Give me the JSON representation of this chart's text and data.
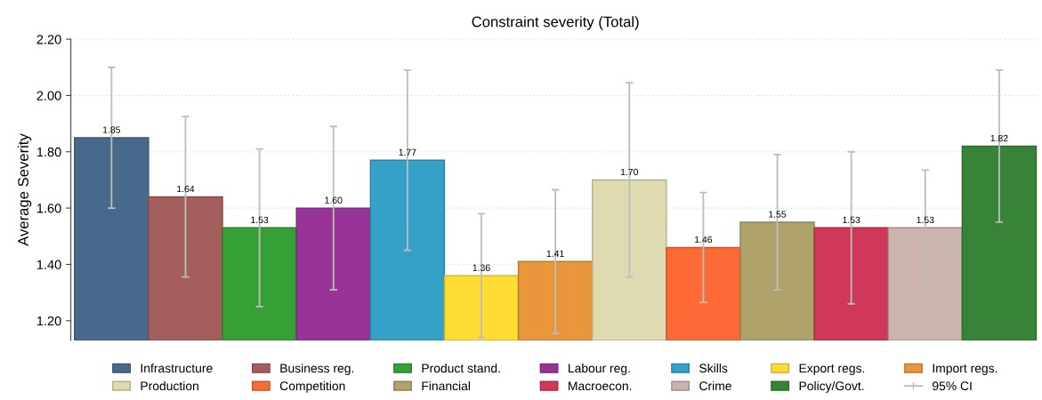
{
  "chart_data": {
    "type": "bar",
    "title": "Constraint severity (Total)",
    "ylabel": "Average Severity",
    "categories": [
      null
    ],
    "series": [
      {
        "name": "Infrastructure",
        "color": "#48698c",
        "values": [
          1.85
        ],
        "errors": [
          0.25
        ],
        "value_labels": [
          "1.85"
        ]
      },
      {
        "name": "Business reg.",
        "color": "#a55e5e",
        "values": [
          1.64
        ],
        "errors": [
          0.285
        ],
        "value_labels": [
          "1.64"
        ]
      },
      {
        "name": "Product stand.",
        "color": "#36a036",
        "values": [
          1.53
        ],
        "errors": [
          0.28
        ],
        "value_labels": [
          "1.53"
        ]
      },
      {
        "name": "Labour reg.",
        "color": "#983498",
        "values": [
          1.6
        ],
        "errors": [
          0.29
        ],
        "value_labels": [
          "1.60"
        ]
      },
      {
        "name": "Skills",
        "color": "#35a1c9",
        "values": [
          1.77
        ],
        "errors": [
          0.32
        ],
        "value_labels": [
          "1.77"
        ]
      },
      {
        "name": "Export regs.",
        "color": "#fedc34",
        "values": [
          1.36
        ],
        "errors": [
          0.22
        ],
        "value_labels": [
          "1.36"
        ]
      },
      {
        "name": "Import regs.",
        "color": "#e9973a",
        "values": [
          1.41
        ],
        "errors": [
          0.255
        ],
        "value_labels": [
          "1.41"
        ]
      },
      {
        "name": "Production",
        "color": "#dedbb0",
        "values": [
          1.7
        ],
        "errors": [
          0.345
        ],
        "value_labels": [
          "1.70"
        ]
      },
      {
        "name": "Competition",
        "color": "#fe6a35",
        "values": [
          1.46
        ],
        "errors": [
          0.195
        ],
        "value_labels": [
          "1.46"
        ]
      },
      {
        "name": "Financial",
        "color": "#b0a26b",
        "values": [
          1.55
        ],
        "errors": [
          0.24
        ],
        "value_labels": [
          "1.55"
        ]
      },
      {
        "name": "Macroecon.",
        "color": "#cf3858",
        "values": [
          1.53
        ],
        "errors": [
          0.27
        ],
        "value_labels": [
          "1.53"
        ]
      },
      {
        "name": "Crime",
        "color": "#cbb3ae",
        "values": [
          1.53
        ],
        "errors": [
          0.205
        ],
        "value_labels": [
          "1.53"
        ]
      },
      {
        "name": "Policy/Govt.",
        "color": "#378337",
        "values": [
          1.82
        ],
        "errors": [
          0.27
        ],
        "value_labels": [
          "1.82"
        ]
      }
    ],
    "ylim": [
      1.13,
      2.2
    ],
    "yticks": [
      {
        "value": 1.2,
        "label": "1.20"
      },
      {
        "value": 1.4,
        "label": "1.40"
      },
      {
        "value": 1.6,
        "label": "1.60"
      },
      {
        "value": 1.8,
        "label": "1.80"
      },
      {
        "value": 2.0,
        "label": "2.00"
      },
      {
        "value": 2.2,
        "label": "2.20"
      }
    ],
    "grid": "y",
    "legend": "bottom",
    "tick_labels": "y",
    "annotations": [
      "95% CI"
    ]
  }
}
